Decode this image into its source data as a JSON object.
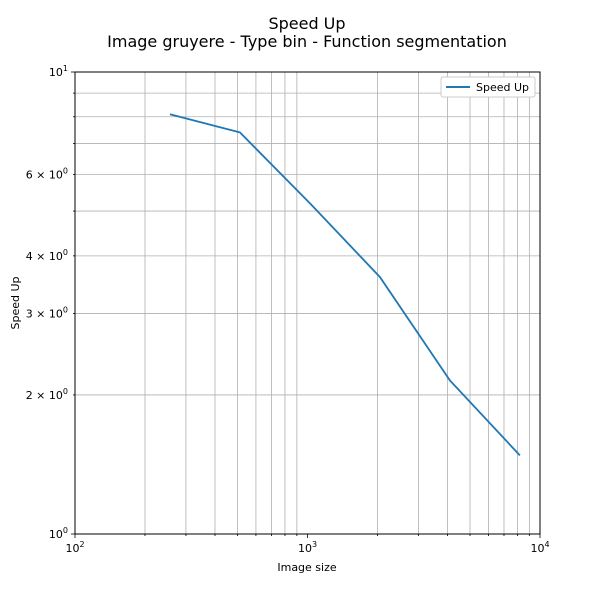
{
  "chart_data": {
    "type": "line",
    "title": "Speed Up",
    "subtitle": "Image gruyere - Type bin - Function segmentation",
    "xlabel": "Image size",
    "ylabel": "Speed Up",
    "x_scale": "log",
    "y_scale": "log",
    "xlim": [
      100,
      10000
    ],
    "ylim": [
      1,
      10
    ],
    "grid": "major-and-minor",
    "legend_position": "top-right",
    "x_ticks": [
      {
        "value": 100,
        "base": "10",
        "exp": "2"
      },
      {
        "value": 1000,
        "base": "10",
        "exp": "3"
      },
      {
        "value": 10000,
        "base": "10",
        "exp": "4"
      }
    ],
    "y_ticks": [
      {
        "value": 1,
        "mant": "",
        "base": "10",
        "exp": "0"
      },
      {
        "value": 2,
        "mant": "2 × ",
        "base": "10",
        "exp": "0"
      },
      {
        "value": 3,
        "mant": "3 × ",
        "base": "10",
        "exp": "0"
      },
      {
        "value": 4,
        "mant": "4 × ",
        "base": "10",
        "exp": "0"
      },
      {
        "value": 6,
        "mant": "6 × ",
        "base": "10",
        "exp": "0"
      },
      {
        "value": 10,
        "mant": "",
        "base": "10",
        "exp": "1"
      }
    ],
    "series": [
      {
        "name": "Speed Up",
        "color": "#1f77b4",
        "x": [
          256,
          512,
          1024,
          2048,
          4096,
          8192
        ],
        "y": [
          8.1,
          7.4,
          5.2,
          3.6,
          2.15,
          1.48
        ]
      }
    ]
  }
}
